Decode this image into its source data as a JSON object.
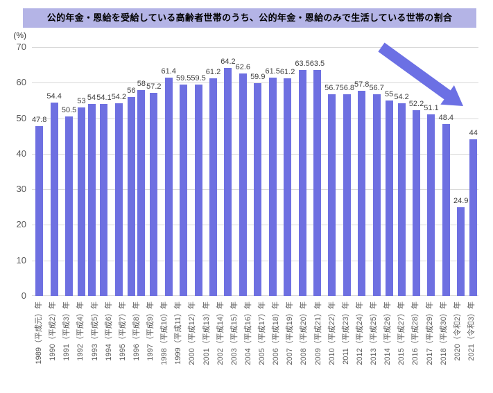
{
  "title": "公的年金・恩給を受給している高齢者世帯のうち、公的年金・恩給のみで生活している世帯の割合",
  "y_axis_unit": "(%)",
  "colors": {
    "bar": "#6e70e1",
    "title_bg": "#b4b4e6",
    "arrow": "#6c70e4",
    "grid": "#d9d9d9",
    "value_label": "#404040",
    "axis_label": "#595959"
  },
  "chart_data": {
    "type": "bar",
    "title": "公的年金・恩給を受給している高齢者世帯のうち、公的年金・恩給のみで生活している世帯の割合",
    "ylabel": "(%)",
    "ylim": [
      0,
      70
    ],
    "yticks": [
      0,
      10,
      20,
      30,
      40,
      50,
      60,
      70
    ],
    "grid": true,
    "legend": "none",
    "annotations": [
      "downward trend arrow at top right"
    ],
    "categories": [
      "1989（平成元）年",
      "1990（平成2）年",
      "1991（平成3）年",
      "1992（平成4）年",
      "1993（平成5）年",
      "1994（平成6）年",
      "1995（平成7）年",
      "1996（平成8）年",
      "1997（平成9）年",
      "1998（平成10）年",
      "1999（平成11）年",
      "2000（平成12）年",
      "2001（平成13）年",
      "2002（平成14）年",
      "2003（平成15）年",
      "2004（平成16）年",
      "2005（平成17）年",
      "2006（平成18）年",
      "2007（平成19）年",
      "2008（平成20）年",
      "2009（平成21）年",
      "2010（平成22）年",
      "2011（平成23）年",
      "2012（平成24）年",
      "2013（平成25）年",
      "2014（平成26）年",
      "2015（平成27）年",
      "2016（平成28）年",
      "2017（平成29）年",
      "2018（平成30）年",
      "2020（令和2）年",
      "2021（令和3）年"
    ],
    "values": [
      47.8,
      54.4,
      50.5,
      53,
      54,
      54.1,
      54.2,
      56,
      58,
      57.2,
      61.4,
      59.5,
      59.5,
      61.2,
      64.2,
      62.6,
      59.9,
      61.5,
      61.2,
      63.5,
      63.5,
      56.7,
      56.8,
      57.8,
      56.7,
      55,
      54.2,
      52.2,
      51.1,
      48.4,
      24.9,
      44
    ]
  }
}
